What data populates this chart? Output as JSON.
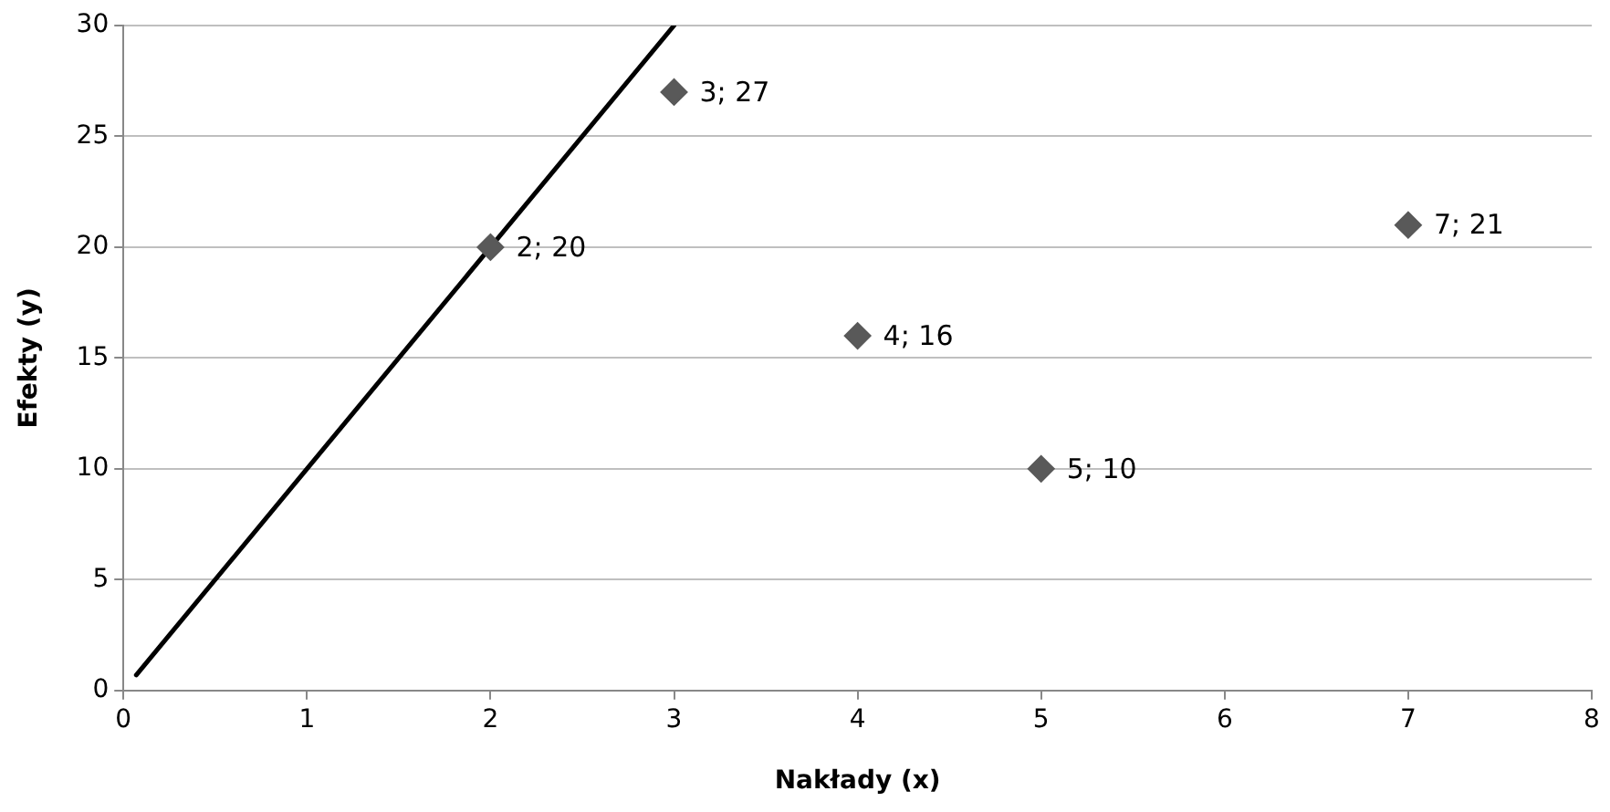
{
  "chart_data": {
    "type": "scatter",
    "xlabel": "Nakłady (x)",
    "ylabel": "Efekty (y)",
    "xlim": [
      0,
      8
    ],
    "xticks": [
      0,
      1,
      2,
      3,
      4,
      5,
      6,
      7,
      8
    ],
    "ylim": [
      0,
      30
    ],
    "yticks": [
      0,
      5,
      10,
      15,
      20,
      25,
      30
    ],
    "grid": "y",
    "legend": false,
    "marker": "diamond",
    "series": [
      {
        "type": "scatter",
        "color": "#595959",
        "x": [
          2,
          3,
          4,
          5,
          7
        ],
        "values": [
          20,
          27,
          16,
          10,
          21
        ],
        "value_labels": [
          "2; 20",
          "3; 27",
          "4; 16",
          "5; 10",
          "7; 21"
        ]
      },
      {
        "type": "line",
        "color": "#000000",
        "marker": "none",
        "x": [
          0.07,
          1,
          2,
          3
        ],
        "values": [
          0.7,
          10,
          20,
          30
        ]
      }
    ]
  }
}
